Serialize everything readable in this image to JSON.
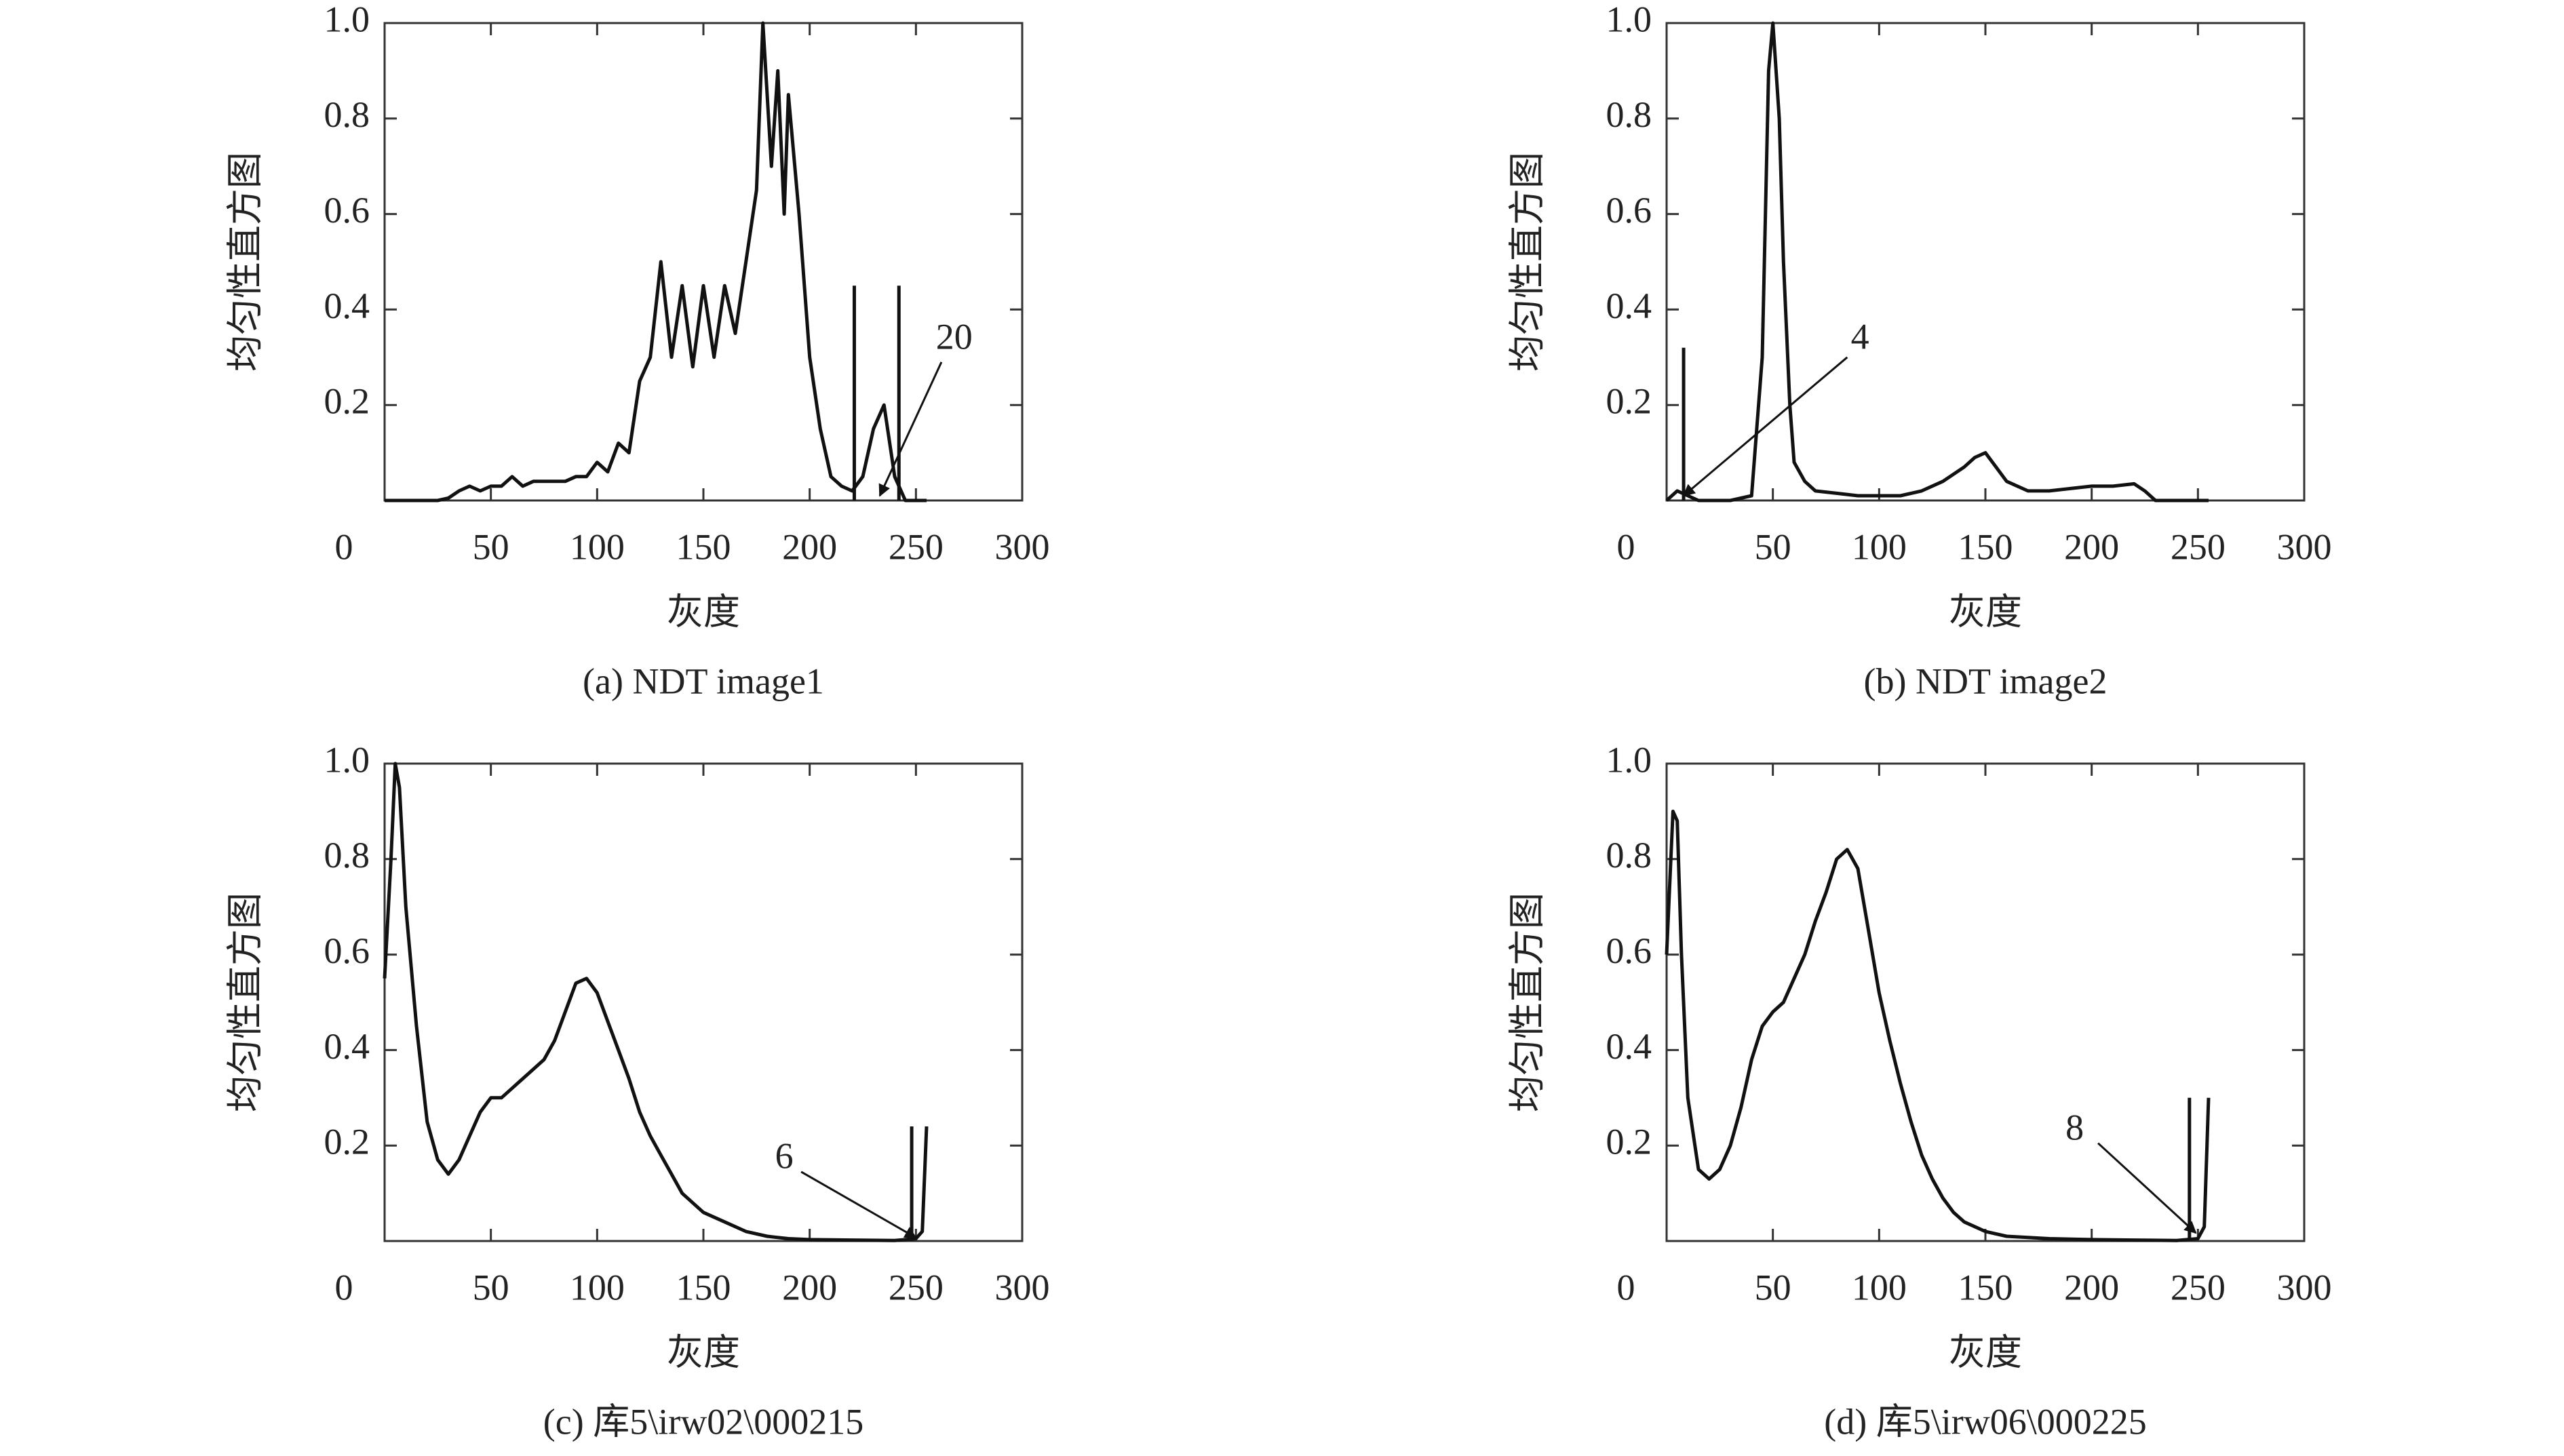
{
  "chart_data": [
    {
      "type": "line",
      "caption": "(a) NDT image1",
      "xlabel": "灰度",
      "ylabel": "均匀性直方图",
      "xlim": [
        0,
        300
      ],
      "ylim": [
        0,
        1
      ],
      "xticks": [
        0,
        50,
        100,
        150,
        200,
        250,
        300
      ],
      "yticks": [
        0.2,
        0.4,
        0.6,
        0.8,
        {
          "value": 1,
          "label": "1.0"
        }
      ],
      "color": "#111111",
      "x": [
        0,
        25,
        30,
        35,
        40,
        45,
        50,
        55,
        60,
        65,
        70,
        75,
        80,
        85,
        90,
        95,
        100,
        105,
        110,
        115,
        120,
        125,
        130,
        135,
        140,
        145,
        150,
        155,
        160,
        165,
        170,
        175,
        178,
        182,
        185,
        188,
        190,
        195,
        200,
        205,
        210,
        215,
        220,
        225,
        230,
        235,
        240,
        245,
        255
      ],
      "values": [
        0,
        0,
        0.005,
        0.02,
        0.03,
        0.02,
        0.03,
        0.03,
        0.05,
        0.03,
        0.04,
        0.04,
        0.04,
        0.04,
        0.05,
        0.05,
        0.08,
        0.06,
        0.12,
        0.1,
        0.25,
        0.3,
        0.5,
        0.3,
        0.45,
        0.28,
        0.45,
        0.3,
        0.45,
        0.35,
        0.5,
        0.65,
        1.0,
        0.7,
        0.9,
        0.6,
        0.85,
        0.6,
        0.3,
        0.15,
        0.05,
        0.03,
        0.02,
        0.05,
        0.15,
        0.2,
        0.05,
        0,
        0
      ],
      "vlines": [
        {
          "x": 221,
          "y": 0.45
        },
        {
          "x": 242,
          "y": 0.45
        }
      ],
      "annotations": [
        {
          "text": "20",
          "x": 268,
          "y": 0.335,
          "arrow_from": [
            262,
            0.29
          ],
          "arrow_to": [
            233,
            0.01
          ]
        }
      ]
    },
    {
      "type": "line",
      "caption": "(b) NDT image2",
      "xlabel": "灰度",
      "ylabel": "均匀性直方图",
      "xlim": [
        0,
        300
      ],
      "ylim": [
        0,
        1
      ],
      "xticks": [
        0,
        50,
        100,
        150,
        200,
        250,
        300
      ],
      "yticks": [
        0.2,
        0.4,
        0.6,
        0.8,
        {
          "value": 1,
          "label": "1.0"
        }
      ],
      "color": "#111111",
      "x": [
        0,
        5,
        10,
        15,
        20,
        30,
        40,
        45,
        48,
        50,
        53,
        55,
        58,
        60,
        65,
        70,
        80,
        90,
        100,
        110,
        120,
        130,
        140,
        145,
        150,
        155,
        160,
        170,
        180,
        190,
        200,
        210,
        220,
        225,
        230,
        240,
        255
      ],
      "values": [
        0,
        0.02,
        0.01,
        0,
        0,
        0,
        0.01,
        0.3,
        0.9,
        1.0,
        0.8,
        0.5,
        0.2,
        0.08,
        0.04,
        0.02,
        0.015,
        0.01,
        0.01,
        0.01,
        0.02,
        0.04,
        0.07,
        0.09,
        0.1,
        0.07,
        0.04,
        0.02,
        0.02,
        0.025,
        0.03,
        0.03,
        0.035,
        0.02,
        0,
        0,
        0
      ],
      "vlines": [
        {
          "x": 8,
          "y": 0.32
        }
      ],
      "annotations": [
        {
          "text": "4",
          "x": 91,
          "y": 0.335,
          "arrow_from": [
            85,
            0.3
          ],
          "arrow_to": [
            8,
            0.01
          ]
        }
      ]
    },
    {
      "type": "line",
      "caption": "(c) 库5\\irw02\\000215",
      "xlabel": "灰度",
      "ylabel": "均匀性直方图",
      "xlim": [
        0,
        300
      ],
      "ylim": [
        0,
        1
      ],
      "xticks": [
        0,
        50,
        100,
        150,
        200,
        250,
        300
      ],
      "yticks": [
        0.2,
        0.4,
        0.6,
        0.8,
        {
          "value": 1,
          "label": "1.0"
        }
      ],
      "color": "#111111",
      "x": [
        0,
        3,
        5,
        7,
        10,
        15,
        20,
        25,
        30,
        35,
        40,
        45,
        50,
        55,
        60,
        65,
        70,
        75,
        80,
        85,
        90,
        95,
        100,
        105,
        110,
        115,
        120,
        125,
        130,
        135,
        140,
        145,
        150,
        160,
        170,
        180,
        190,
        200,
        220,
        240,
        250,
        253,
        255
      ],
      "values": [
        0.55,
        0.8,
        1.0,
        0.95,
        0.7,
        0.45,
        0.25,
        0.17,
        0.14,
        0.17,
        0.22,
        0.27,
        0.3,
        0.3,
        0.32,
        0.34,
        0.36,
        0.38,
        0.42,
        0.48,
        0.54,
        0.55,
        0.52,
        0.46,
        0.4,
        0.34,
        0.27,
        0.22,
        0.18,
        0.14,
        0.1,
        0.08,
        0.06,
        0.04,
        0.02,
        0.01,
        0.005,
        0.003,
        0.002,
        0.001,
        0.005,
        0.02,
        0.24
      ],
      "vlines": [
        {
          "x": 248,
          "y": 0.24
        }
      ],
      "annotations": [
        {
          "text": "6",
          "x": 188,
          "y": 0.17,
          "arrow_from": [
            196,
            0.145
          ],
          "arrow_to": [
            250,
            0.007
          ]
        }
      ]
    },
    {
      "type": "line",
      "caption": "(d) 库5\\irw06\\000225",
      "xlabel": "灰度",
      "ylabel": "均匀性直方图",
      "xlim": [
        0,
        300
      ],
      "ylim": [
        0,
        1
      ],
      "xticks": [
        0,
        50,
        100,
        150,
        200,
        250,
        300
      ],
      "yticks": [
        0.2,
        0.4,
        0.6,
        0.8,
        {
          "value": 1,
          "label": "1.0"
        }
      ],
      "color": "#111111",
      "x": [
        0,
        3,
        5,
        7,
        10,
        15,
        20,
        25,
        30,
        35,
        40,
        45,
        50,
        55,
        60,
        65,
        70,
        75,
        80,
        85,
        90,
        95,
        100,
        105,
        110,
        115,
        120,
        125,
        130,
        135,
        140,
        150,
        160,
        180,
        200,
        220,
        240,
        250,
        253,
        255
      ],
      "values": [
        0.6,
        0.9,
        0.88,
        0.6,
        0.3,
        0.15,
        0.13,
        0.15,
        0.2,
        0.28,
        0.38,
        0.45,
        0.48,
        0.5,
        0.55,
        0.6,
        0.67,
        0.73,
        0.8,
        0.82,
        0.78,
        0.65,
        0.52,
        0.42,
        0.33,
        0.25,
        0.18,
        0.13,
        0.09,
        0.06,
        0.04,
        0.02,
        0.01,
        0.005,
        0.003,
        0.002,
        0.001,
        0.005,
        0.03,
        0.3
      ],
      "vlines": [
        {
          "x": 246,
          "y": 0.3
        }
      ],
      "annotations": [
        {
          "text": "8",
          "x": 192,
          "y": 0.23,
          "arrow_from": [
            203,
            0.205
          ],
          "arrow_to": [
            249,
            0.017
          ]
        }
      ]
    }
  ]
}
